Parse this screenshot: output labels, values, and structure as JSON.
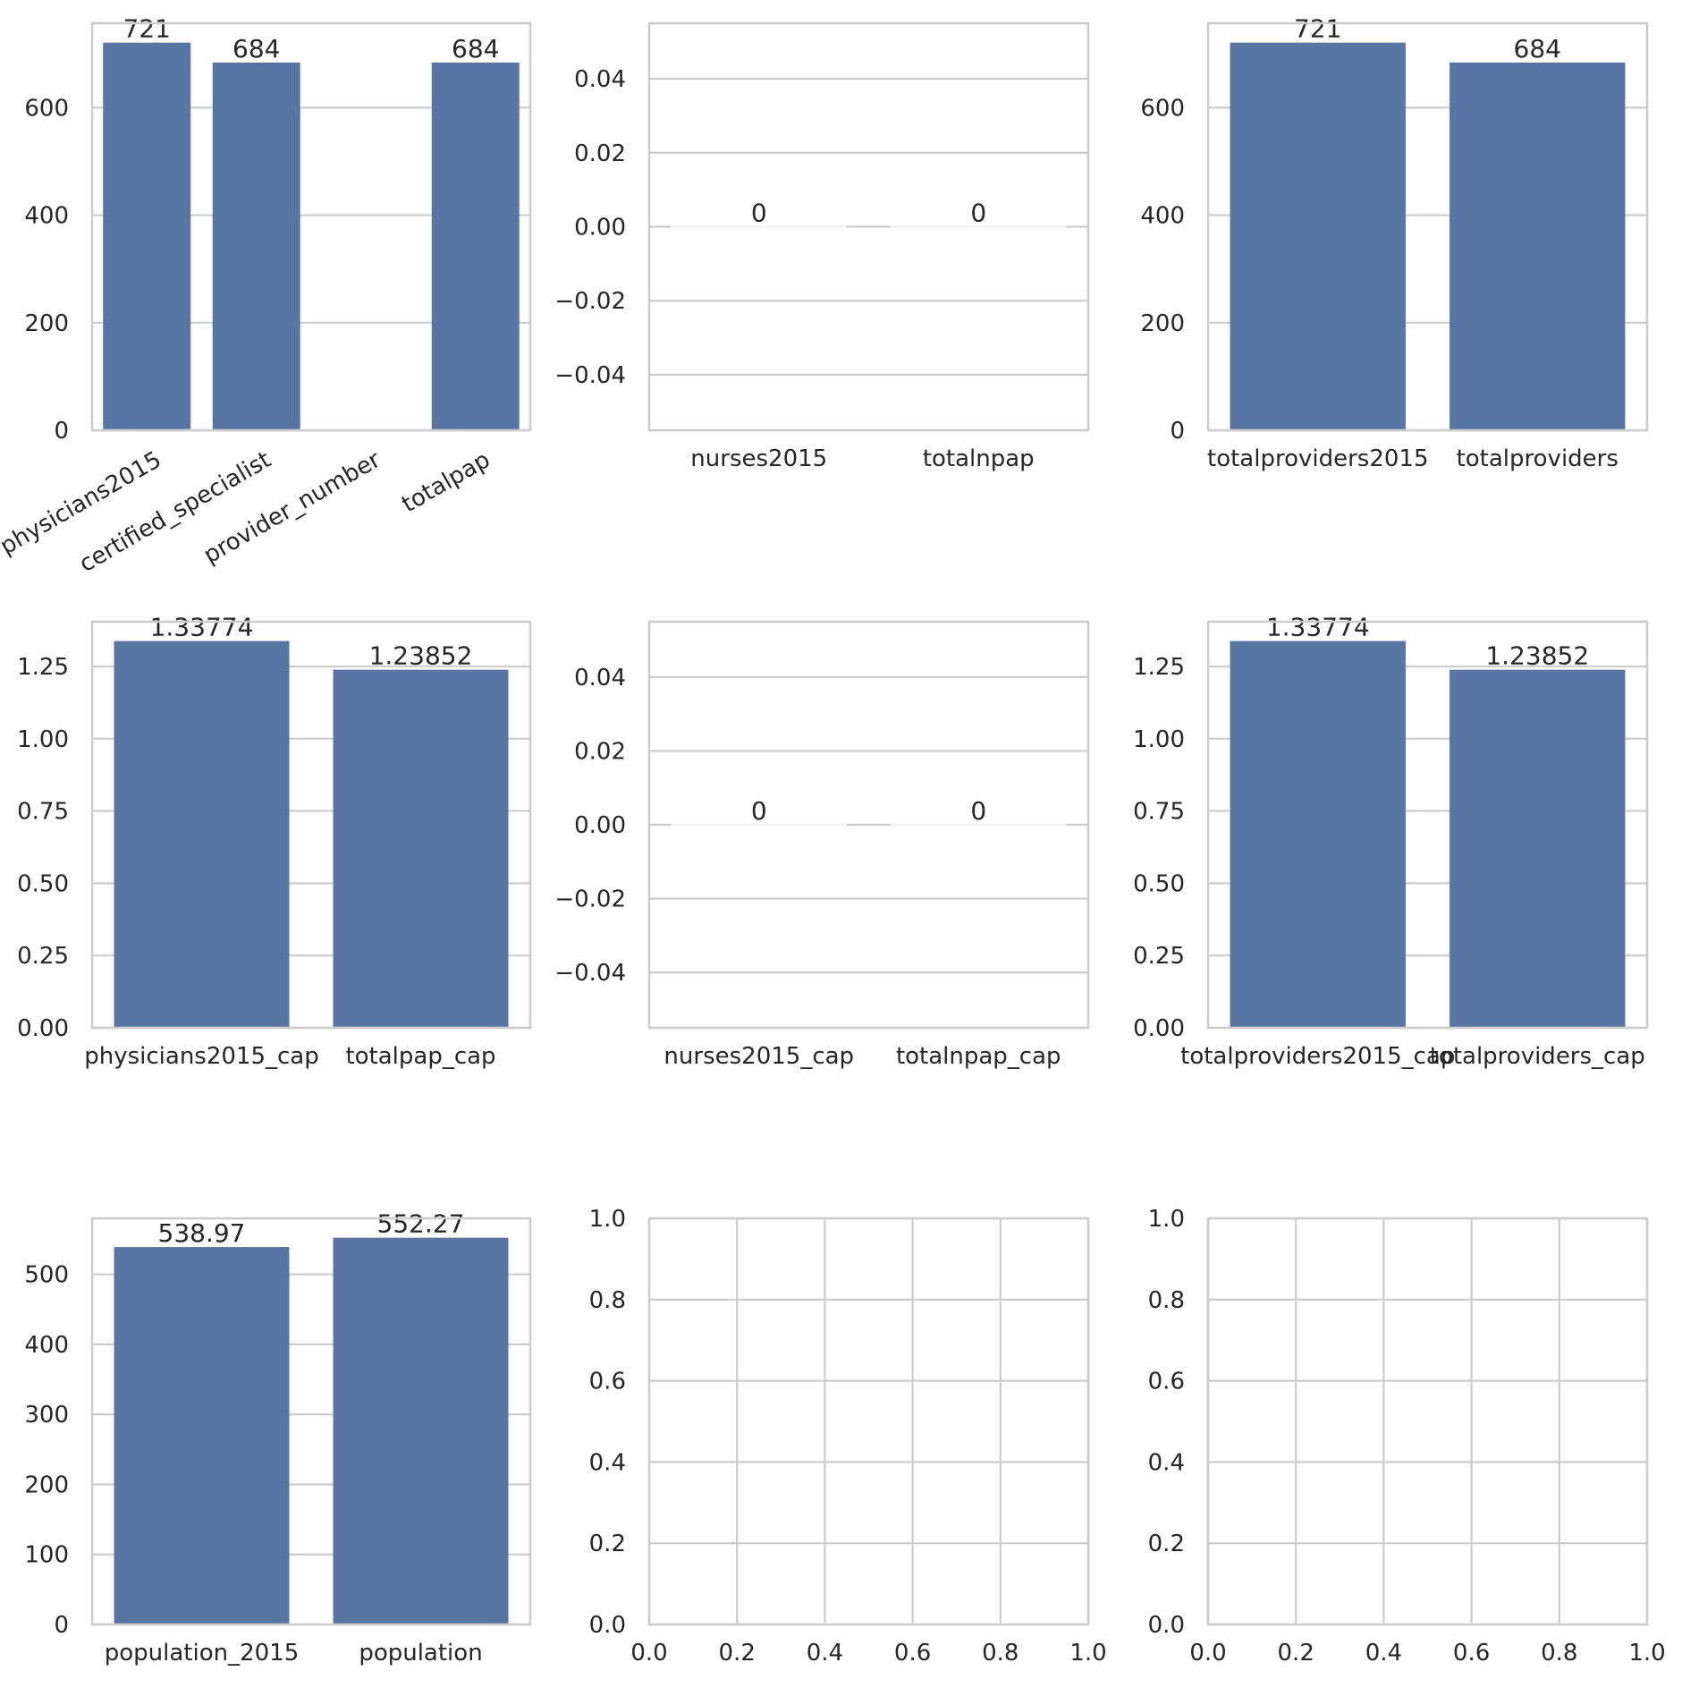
{
  "figure": {
    "layout": "3x3 grid of bar charts",
    "bar_color": "#5975a4",
    "grid_color": "#cccccc",
    "text_color": "#262626",
    "background": "#ffffff"
  },
  "chart_data": [
    {
      "type": "bar",
      "title": "",
      "xlabel": "",
      "ylabel": "",
      "categories": [
        "physicians2015",
        "certified_specialist",
        "provider_number",
        "totalpap"
      ],
      "values": [
        721,
        684,
        null,
        684
      ],
      "data_labels": [
        "721",
        "684",
        "",
        "684"
      ],
      "ylim": [
        0,
        757
      ],
      "yticks": [
        0,
        200,
        400,
        600
      ],
      "ytick_labels": [
        "0",
        "200",
        "400",
        "600"
      ],
      "xtick_rotation": 30,
      "grid": true
    },
    {
      "type": "bar",
      "title": "",
      "xlabel": "",
      "ylabel": "",
      "categories": [
        "nurses2015",
        "totalnpap"
      ],
      "values": [
        0,
        0
      ],
      "data_labels": [
        "0",
        "0"
      ],
      "ylim": [
        -0.055,
        0.055
      ],
      "yticks": [
        -0.04,
        -0.02,
        0.0,
        0.02,
        0.04
      ],
      "ytick_labels": [
        "−0.04",
        "−0.02",
        "0.00",
        "0.02",
        "0.04"
      ],
      "xtick_rotation": 0,
      "grid": true
    },
    {
      "type": "bar",
      "title": "",
      "xlabel": "",
      "ylabel": "",
      "categories": [
        "totalproviders2015",
        "totalproviders"
      ],
      "values": [
        721,
        684
      ],
      "data_labels": [
        "721",
        "684"
      ],
      "ylim": [
        0,
        757
      ],
      "yticks": [
        0,
        200,
        400,
        600
      ],
      "ytick_labels": [
        "0",
        "200",
        "400",
        "600"
      ],
      "xtick_rotation": 0,
      "grid": true
    },
    {
      "type": "bar",
      "title": "",
      "xlabel": "",
      "ylabel": "",
      "categories": [
        "physicians2015_cap",
        "totalpap_cap"
      ],
      "values": [
        1.33774,
        1.23852
      ],
      "data_labels": [
        "1.33774",
        "1.23852"
      ],
      "ylim": [
        0,
        1.4046
      ],
      "yticks": [
        0.0,
        0.25,
        0.5,
        0.75,
        1.0,
        1.25
      ],
      "ytick_labels": [
        "0.00",
        "0.25",
        "0.50",
        "0.75",
        "1.00",
        "1.25"
      ],
      "xtick_rotation": 0,
      "grid": true
    },
    {
      "type": "bar",
      "title": "",
      "xlabel": "",
      "ylabel": "",
      "categories": [
        "nurses2015_cap",
        "totalnpap_cap"
      ],
      "values": [
        0,
        0
      ],
      "data_labels": [
        "0",
        "0"
      ],
      "ylim": [
        -0.055,
        0.055
      ],
      "yticks": [
        -0.04,
        -0.02,
        0.0,
        0.02,
        0.04
      ],
      "ytick_labels": [
        "−0.04",
        "−0.02",
        "0.00",
        "0.02",
        "0.04"
      ],
      "xtick_rotation": 0,
      "grid": true
    },
    {
      "type": "bar",
      "title": "",
      "xlabel": "",
      "ylabel": "",
      "categories": [
        "totalproviders2015_cap",
        "totalproviders_cap"
      ],
      "values": [
        1.33774,
        1.23852
      ],
      "data_labels": [
        "1.33774",
        "1.23852"
      ],
      "ylim": [
        0,
        1.4046
      ],
      "yticks": [
        0.0,
        0.25,
        0.5,
        0.75,
        1.0,
        1.25
      ],
      "ytick_labels": [
        "0.00",
        "0.25",
        "0.50",
        "0.75",
        "1.00",
        "1.25"
      ],
      "xtick_rotation": 0,
      "grid": true
    },
    {
      "type": "bar",
      "title": "",
      "xlabel": "",
      "ylabel": "",
      "categories": [
        "population_2015",
        "population"
      ],
      "values": [
        538.97,
        552.27
      ],
      "data_labels": [
        "538.97",
        "552.27"
      ],
      "ylim": [
        0,
        579.9
      ],
      "yticks": [
        0,
        100,
        200,
        300,
        400,
        500
      ],
      "ytick_labels": [
        "0",
        "100",
        "200",
        "300",
        "400",
        "500"
      ],
      "xtick_rotation": 0,
      "grid": true
    },
    {
      "type": "scatter",
      "title": "",
      "xlabel": "",
      "ylabel": "",
      "empty": true,
      "xlim": [
        0,
        1
      ],
      "ylim": [
        0,
        1
      ],
      "xticks": [
        0.0,
        0.2,
        0.4,
        0.6,
        0.8,
        1.0
      ],
      "xtick_labels": [
        "0.0",
        "0.2",
        "0.4",
        "0.6",
        "0.8",
        "1.0"
      ],
      "yticks": [
        0.0,
        0.2,
        0.4,
        0.6,
        0.8,
        1.0
      ],
      "ytick_labels": [
        "0.0",
        "0.2",
        "0.4",
        "0.6",
        "0.8",
        "1.0"
      ],
      "grid": true
    },
    {
      "type": "scatter",
      "title": "",
      "xlabel": "",
      "ylabel": "",
      "empty": true,
      "xlim": [
        0,
        1
      ],
      "ylim": [
        0,
        1
      ],
      "xticks": [
        0.0,
        0.2,
        0.4,
        0.6,
        0.8,
        1.0
      ],
      "xtick_labels": [
        "0.0",
        "0.2",
        "0.4",
        "0.6",
        "0.8",
        "1.0"
      ],
      "yticks": [
        0.0,
        0.2,
        0.4,
        0.6,
        0.8,
        1.0
      ],
      "ytick_labels": [
        "0.0",
        "0.2",
        "0.4",
        "0.6",
        "0.8",
        "1.0"
      ],
      "grid": true
    }
  ]
}
